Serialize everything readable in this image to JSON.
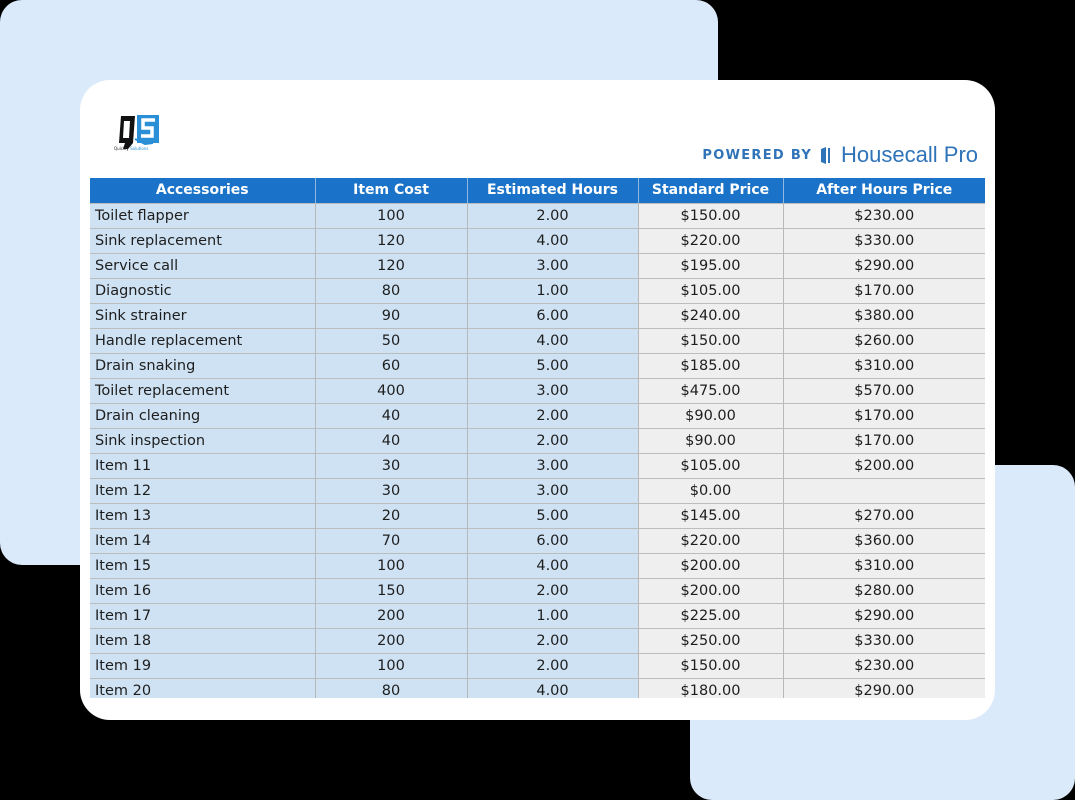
{
  "brand": {
    "logo_caption_left": "Quickly",
    "logo_caption_right": "Solutions",
    "powered_by": "POWERED BY",
    "partner_name": "Housecall Pro",
    "accent_color": "#1a73c8",
    "partner_color": "#2f73b8"
  },
  "table": {
    "columns": [
      "Accessories",
      "Item Cost",
      "Estimated Hours",
      "Standard Price",
      "After Hours Price"
    ],
    "rows": [
      {
        "name": "Toilet flapper",
        "cost": "100",
        "hours": "2.00",
        "standard": "$150.00",
        "after": "$230.00"
      },
      {
        "name": "Sink replacement",
        "cost": "120",
        "hours": "4.00",
        "standard": "$220.00",
        "after": "$330.00"
      },
      {
        "name": "Service call",
        "cost": "120",
        "hours": "3.00",
        "standard": "$195.00",
        "after": "$290.00"
      },
      {
        "name": "Diagnostic",
        "cost": "80",
        "hours": "1.00",
        "standard": "$105.00",
        "after": "$170.00"
      },
      {
        "name": "Sink strainer",
        "cost": "90",
        "hours": "6.00",
        "standard": "$240.00",
        "after": "$380.00"
      },
      {
        "name": "Handle replacement",
        "cost": "50",
        "hours": "4.00",
        "standard": "$150.00",
        "after": "$260.00"
      },
      {
        "name": "Drain snaking",
        "cost": "60",
        "hours": "5.00",
        "standard": "$185.00",
        "after": "$310.00"
      },
      {
        "name": "Toilet replacement",
        "cost": "400",
        "hours": "3.00",
        "standard": "$475.00",
        "after": "$570.00"
      },
      {
        "name": "Drain cleaning",
        "cost": "40",
        "hours": "2.00",
        "standard": "$90.00",
        "after": "$170.00"
      },
      {
        "name": "Sink inspection",
        "cost": "40",
        "hours": "2.00",
        "standard": "$90.00",
        "after": "$170.00"
      },
      {
        "name": "Item 11",
        "cost": "30",
        "hours": "3.00",
        "standard": "$105.00",
        "after": "$200.00"
      },
      {
        "name": "Item 12",
        "cost": "30",
        "hours": "3.00",
        "standard": "$0.00",
        "after": ""
      },
      {
        "name": "Item 13",
        "cost": "20",
        "hours": "5.00",
        "standard": "$145.00",
        "after": "$270.00"
      },
      {
        "name": "Item 14",
        "cost": "70",
        "hours": "6.00",
        "standard": "$220.00",
        "after": "$360.00"
      },
      {
        "name": "Item 15",
        "cost": "100",
        "hours": "4.00",
        "standard": "$200.00",
        "after": "$310.00"
      },
      {
        "name": "Item 16",
        "cost": "150",
        "hours": "2.00",
        "standard": "$200.00",
        "after": "$280.00"
      },
      {
        "name": "Item 17",
        "cost": "200",
        "hours": "1.00",
        "standard": "$225.00",
        "after": "$290.00"
      },
      {
        "name": "Item 18",
        "cost": "200",
        "hours": "2.00",
        "standard": "$250.00",
        "after": "$330.00"
      },
      {
        "name": "Item 19",
        "cost": "100",
        "hours": "2.00",
        "standard": "$150.00",
        "after": "$230.00"
      },
      {
        "name": "Item 20",
        "cost": "80",
        "hours": "4.00",
        "standard": "$180.00",
        "after": "$290.00"
      }
    ]
  }
}
